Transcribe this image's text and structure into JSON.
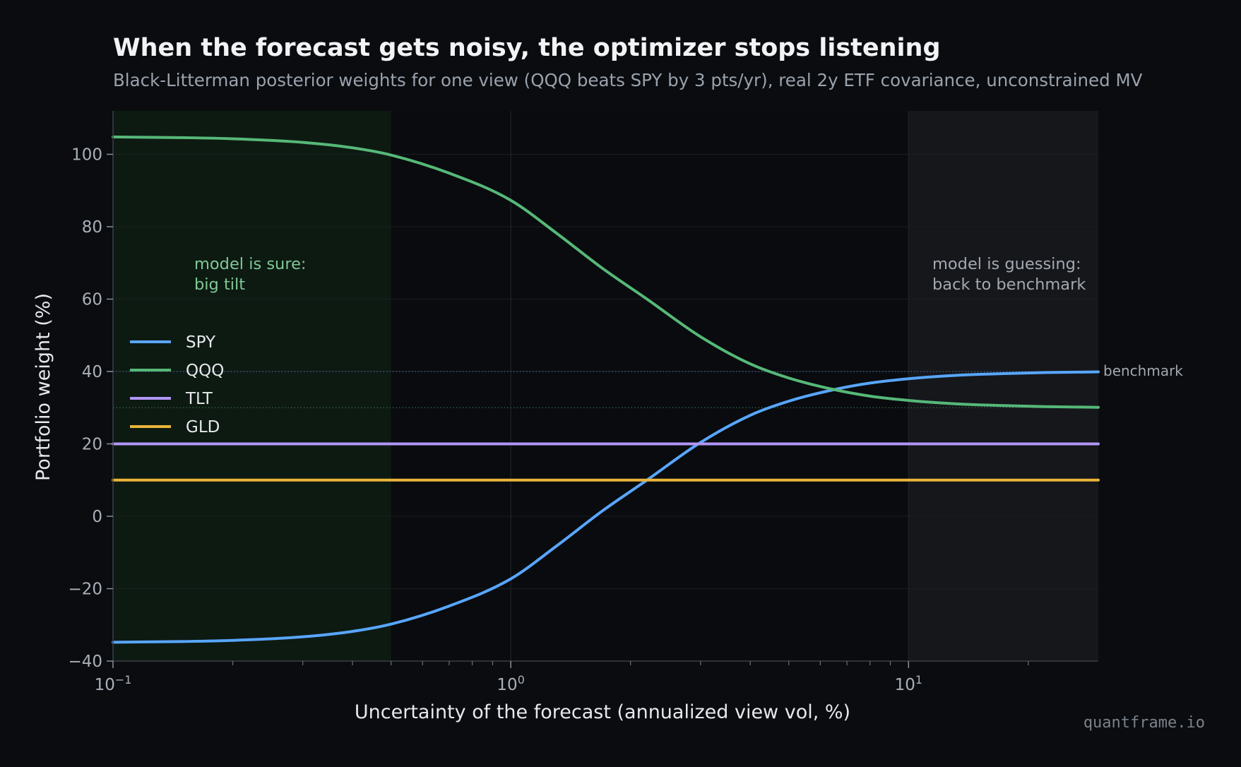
{
  "chart_data": {
    "type": "line",
    "title": "When the forecast gets noisy, the optimizer stops listening",
    "subtitle": "Black-Litterman posterior weights for one view (QQQ beats SPY by 3 pts/yr), real 2y ETF covariance, unconstrained MV",
    "xlabel": "Uncertainty of the forecast (annualized view vol, %)",
    "ylabel": "Portfolio weight (%)",
    "x_scale": "log",
    "xlim": [
      0.1,
      30
    ],
    "ylim": [
      -40,
      112
    ],
    "x_ticks": [
      {
        "value": 0.1,
        "base": "10",
        "exp": "−1"
      },
      {
        "value": 1,
        "base": "10",
        "exp": "0"
      },
      {
        "value": 10,
        "base": "10",
        "exp": "1"
      }
    ],
    "y_ticks": [
      100,
      80,
      60,
      40,
      20,
      0,
      -20,
      -40
    ],
    "y_tick_labels": [
      "100",
      "80",
      "60",
      "40",
      "20",
      "0",
      "−20",
      "−40"
    ],
    "grid": true,
    "legend_position": "left",
    "x": [
      0.1,
      0.15,
      0.2,
      0.3,
      0.4,
      0.5,
      0.7,
      1.0,
      1.3,
      1.7,
      2.2,
      3.0,
      4.0,
      5.0,
      6.5,
      8.0,
      10.0,
      13.0,
      17.0,
      22.0,
      30.0
    ],
    "series": [
      {
        "name": "SPY",
        "color": "#58a6ff",
        "values": [
          -34.8,
          -34.6,
          -34.3,
          -33.3,
          -31.8,
          -29.8,
          -24.8,
          -17.3,
          -8.3,
          1.5,
          10.0,
          20.4,
          27.9,
          31.8,
          35.0,
          36.8,
          38.0,
          38.9,
          39.4,
          39.7,
          39.9
        ]
      },
      {
        "name": "QQQ",
        "color": "#56b878",
        "values": [
          104.8,
          104.6,
          104.3,
          103.3,
          101.8,
          99.8,
          94.8,
          87.3,
          78.3,
          68.5,
          60.0,
          49.6,
          42.1,
          38.2,
          35.0,
          33.2,
          32.0,
          31.1,
          30.6,
          30.3,
          30.1
        ]
      },
      {
        "name": "TLT",
        "color": "#b196f6",
        "values": [
          20,
          20,
          20,
          20,
          20,
          20,
          20,
          20,
          20,
          20,
          20,
          20,
          20,
          20,
          20,
          20,
          20,
          20,
          20,
          20,
          20
        ]
      },
      {
        "name": "GLD",
        "color": "#eab43a",
        "values": [
          10,
          10,
          10,
          10,
          10,
          10,
          10,
          10,
          10,
          10,
          10,
          10,
          10,
          10,
          10,
          10,
          10,
          10,
          10,
          10,
          10
        ]
      }
    ],
    "regions": [
      {
        "x_range": [
          0.1,
          0.5
        ],
        "color": "#0d1a12",
        "label_lines": [
          "model is sure:",
          "big tilt"
        ]
      },
      {
        "x_range": [
          10,
          30
        ],
        "color": "#15171b",
        "label_lines": [
          "model is guessing:",
          "back to benchmark"
        ]
      }
    ],
    "reference_lines": [
      {
        "y": 40,
        "color": "#3d5a80",
        "label": "benchmark"
      },
      {
        "y": 30,
        "color": "#2f5a3c"
      }
    ],
    "watermark": "quantframe.io"
  }
}
